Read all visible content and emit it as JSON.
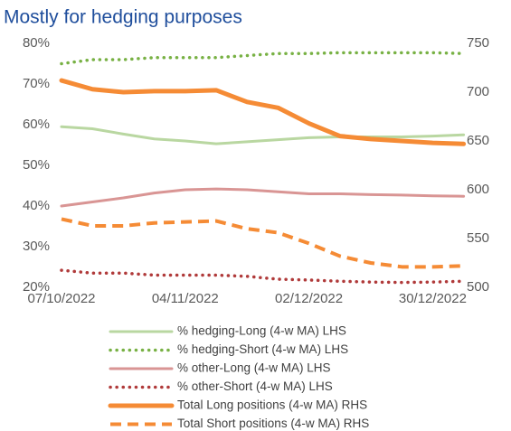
{
  "chart_data": {
    "type": "line",
    "title": "Mostly for hedging purposes",
    "categories": [
      "07/10/2022",
      null,
      null,
      null,
      "04/11/2022",
      null,
      null,
      null,
      "02/12/2022",
      null,
      null,
      null,
      "30/12/2022",
      null
    ],
    "ylim": [
      20,
      80
    ],
    "yticks": [
      {
        "value": 20,
        "label": "20%"
      },
      {
        "value": 30,
        "label": "30%"
      },
      {
        "value": 40,
        "label": "40%"
      },
      {
        "value": 50,
        "label": "50%"
      },
      {
        "value": 60,
        "label": "60%"
      },
      {
        "value": 70,
        "label": "70%"
      },
      {
        "value": 80,
        "label": "80%"
      }
    ],
    "y2lim": [
      500,
      750
    ],
    "y2ticks": [
      500,
      550,
      600,
      650,
      700,
      750
    ],
    "grid": false,
    "legend": "bottom",
    "series": [
      {
        "name": "% hedging-Long (4-w MA) LHS",
        "color": "#b9d7a1",
        "style": "solid",
        "values": [
          59.5,
          59,
          57.7,
          56.5,
          56,
          55.3,
          55.8,
          56.3,
          56.8,
          57,
          57,
          57,
          57.2,
          57.5
        ]
      },
      {
        "name": "% hedging-Short (4-w MA) LHS",
        "color": "#78b144",
        "style": "dotted",
        "values": [
          75,
          76,
          76,
          76.5,
          76.5,
          76.5,
          77,
          77.5,
          77.5,
          77.7,
          77.7,
          77.7,
          77.7,
          77.5
        ]
      },
      {
        "name": "% other-Long (4-w MA) LHS",
        "color": "#d99594",
        "style": "solid",
        "values": [
          40,
          41,
          42,
          43.2,
          44,
          44.2,
          44,
          43.5,
          43,
          43,
          42.8,
          42.7,
          42.5,
          42.4
        ]
      },
      {
        "name": "% other-Short (4-w MA) LHS",
        "color": "#b03a3a",
        "style": "dotted",
        "values": [
          24.2,
          23.5,
          23.5,
          23,
          23,
          23,
          22.7,
          22,
          21.8,
          21.5,
          21.3,
          21.2,
          21.3,
          21.5
        ]
      },
      {
        "name": "Total Long positions (4-w MA) RHS",
        "color": "#f58b35",
        "style": "solid",
        "axis": "y2",
        "values": [
          712,
          703,
          700,
          701,
          701,
          702,
          690,
          684,
          668,
          655,
          652,
          650,
          648,
          647
        ]
      },
      {
        "name": "Total Short positions (4-w MA) RHS",
        "color": "#f58b35",
        "style": "dashed",
        "axis": "y2",
        "values": [
          570,
          563,
          563,
          566,
          567,
          568,
          560,
          556,
          545,
          532,
          525,
          521,
          521,
          522
        ]
      }
    ]
  }
}
